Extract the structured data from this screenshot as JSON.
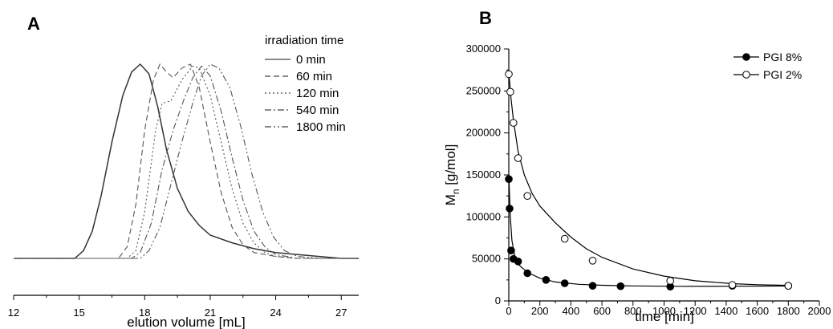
{
  "chart_data": [
    {
      "panel": "A",
      "type": "line",
      "xlabel": "elution volume [mL]",
      "ylabel": "",
      "xlim": [
        12,
        27.8
      ],
      "xticks": [
        12,
        15,
        18,
        21,
        24,
        27
      ],
      "ylim": [
        0,
        1.1
      ],
      "grid": false,
      "legend": {
        "title": "irradiation time",
        "placement": "top-right"
      },
      "series": [
        {
          "name": "0 min",
          "style": "solid",
          "values": [
            [
              12.0,
              0.0
            ],
            [
              14.8,
              0.0
            ],
            [
              15.2,
              0.04
            ],
            [
              15.6,
              0.14
            ],
            [
              16.0,
              0.32
            ],
            [
              16.5,
              0.6
            ],
            [
              17.0,
              0.84
            ],
            [
              17.4,
              0.96
            ],
            [
              17.8,
              1.0
            ],
            [
              18.2,
              0.95
            ],
            [
              18.6,
              0.78
            ],
            [
              19.0,
              0.56
            ],
            [
              19.5,
              0.36
            ],
            [
              20.0,
              0.24
            ],
            [
              20.5,
              0.17
            ],
            [
              21.0,
              0.12
            ],
            [
              22.0,
              0.08
            ],
            [
              23.0,
              0.05
            ],
            [
              24.0,
              0.03
            ],
            [
              25.0,
              0.02
            ],
            [
              26.0,
              0.01
            ],
            [
              27.0,
              0.0
            ],
            [
              27.8,
              0.0
            ]
          ]
        },
        {
          "name": "60 min",
          "style": "dash",
          "values": [
            [
              12.0,
              0.0
            ],
            [
              16.8,
              0.0
            ],
            [
              17.2,
              0.06
            ],
            [
              17.6,
              0.28
            ],
            [
              18.0,
              0.66
            ],
            [
              18.4,
              0.92
            ],
            [
              18.7,
              1.0
            ],
            [
              19.0,
              0.96
            ],
            [
              19.3,
              0.93
            ],
            [
              19.7,
              0.98
            ],
            [
              20.1,
              1.0
            ],
            [
              20.5,
              0.88
            ],
            [
              21.0,
              0.6
            ],
            [
              21.5,
              0.34
            ],
            [
              22.0,
              0.16
            ],
            [
              22.5,
              0.07
            ],
            [
              23.0,
              0.03
            ],
            [
              24.0,
              0.01
            ],
            [
              25.0,
              0.0
            ],
            [
              27.8,
              0.0
            ]
          ]
        },
        {
          "name": "120 min",
          "style": "dot",
          "values": [
            [
              12.0,
              0.0
            ],
            [
              17.2,
              0.0
            ],
            [
              17.6,
              0.04
            ],
            [
              18.0,
              0.24
            ],
            [
              18.5,
              0.66
            ],
            [
              18.8,
              0.8
            ],
            [
              19.2,
              0.81
            ],
            [
              19.7,
              0.92
            ],
            [
              20.2,
              0.99
            ],
            [
              20.5,
              0.98
            ],
            [
              21.0,
              0.84
            ],
            [
              21.5,
              0.6
            ],
            [
              22.0,
              0.36
            ],
            [
              22.5,
              0.18
            ],
            [
              23.0,
              0.08
            ],
            [
              23.5,
              0.03
            ],
            [
              24.0,
              0.01
            ],
            [
              25.0,
              0.0
            ],
            [
              27.8,
              0.0
            ]
          ]
        },
        {
          "name": "540 min",
          "style": "dashdot",
          "values": [
            [
              12.0,
              0.0
            ],
            [
              17.4,
              0.0
            ],
            [
              17.8,
              0.03
            ],
            [
              18.3,
              0.18
            ],
            [
              18.8,
              0.46
            ],
            [
              19.3,
              0.66
            ],
            [
              19.8,
              0.82
            ],
            [
              20.2,
              0.93
            ],
            [
              20.6,
              0.99
            ],
            [
              21.0,
              0.94
            ],
            [
              21.5,
              0.76
            ],
            [
              22.0,
              0.52
            ],
            [
              22.5,
              0.3
            ],
            [
              23.0,
              0.14
            ],
            [
              23.5,
              0.06
            ],
            [
              24.0,
              0.02
            ],
            [
              25.0,
              0.0
            ],
            [
              27.8,
              0.0
            ]
          ]
        },
        {
          "name": "1800 min",
          "style": "dashdotdot",
          "values": [
            [
              12.0,
              0.0
            ],
            [
              17.8,
              0.0
            ],
            [
              18.2,
              0.04
            ],
            [
              18.7,
              0.16
            ],
            [
              19.2,
              0.38
            ],
            [
              19.7,
              0.6
            ],
            [
              20.2,
              0.8
            ],
            [
              20.6,
              0.94
            ],
            [
              21.0,
              1.0
            ],
            [
              21.4,
              0.98
            ],
            [
              21.9,
              0.88
            ],
            [
              22.4,
              0.68
            ],
            [
              22.9,
              0.44
            ],
            [
              23.4,
              0.24
            ],
            [
              23.9,
              0.11
            ],
            [
              24.4,
              0.04
            ],
            [
              25.0,
              0.01
            ],
            [
              26.0,
              0.0
            ],
            [
              27.8,
              0.0
            ]
          ]
        }
      ]
    },
    {
      "panel": "B",
      "type": "scatter",
      "xlabel": "time [min]",
      "ylabel": "M",
      "ylabel_sub": "n",
      "ylabel_rest": " [g/mol]",
      "xlim": [
        0,
        2000
      ],
      "xticks": [
        0,
        200,
        400,
        600,
        800,
        1000,
        1200,
        1400,
        1600,
        1800,
        2000
      ],
      "ylim": [
        0,
        300000
      ],
      "yticks": [
        0,
        50000,
        100000,
        150000,
        200000,
        250000,
        300000
      ],
      "grid": false,
      "legend": {
        "placement": "top-right"
      },
      "series": [
        {
          "name": "PGI 8%",
          "marker": "filled-circle",
          "points": [
            [
              0,
              145000
            ],
            [
              5,
              110000
            ],
            [
              15,
              60000
            ],
            [
              30,
              50000
            ],
            [
              60,
              47000
            ],
            [
              120,
              33000
            ],
            [
              240,
              25000
            ],
            [
              360,
              21000
            ],
            [
              540,
              18000
            ],
            [
              720,
              17500
            ],
            [
              1040,
              17000
            ],
            [
              1440,
              18000
            ],
            [
              1800,
              18000
            ]
          ],
          "fit": [
            [
              0,
              150000
            ],
            [
              10,
              100000
            ],
            [
              20,
              72000
            ],
            [
              40,
              52000
            ],
            [
              70,
              42000
            ],
            [
              120,
              34000
            ],
            [
              200,
              27000
            ],
            [
              300,
              22500
            ],
            [
              450,
              19800
            ],
            [
              600,
              18600
            ],
            [
              800,
              17900
            ],
            [
              1100,
              17400
            ],
            [
              1440,
              17500
            ],
            [
              1800,
              17800
            ]
          ]
        },
        {
          "name": "PGI 2%",
          "marker": "open-circle",
          "points": [
            [
              0,
              270000
            ],
            [
              10,
              249000
            ],
            [
              30,
              212000
            ],
            [
              60,
              170000
            ],
            [
              120,
              125000
            ],
            [
              360,
              74000
            ],
            [
              540,
              48000
            ],
            [
              1040,
              24000
            ],
            [
              1440,
              19000
            ],
            [
              1800,
              18000
            ]
          ],
          "fit": [
            [
              0,
              272000
            ],
            [
              15,
              240000
            ],
            [
              30,
              215000
            ],
            [
              60,
              178000
            ],
            [
              100,
              150000
            ],
            [
              150,
              128000
            ],
            [
              200,
              113000
            ],
            [
              300,
              93000
            ],
            [
              400,
              76000
            ],
            [
              500,
              62000
            ],
            [
              600,
              52000
            ],
            [
              800,
              38000
            ],
            [
              1000,
              29500
            ],
            [
              1200,
              24000
            ],
            [
              1440,
              20500
            ],
            [
              1600,
              19300
            ],
            [
              1800,
              18500
            ]
          ]
        }
      ]
    }
  ]
}
